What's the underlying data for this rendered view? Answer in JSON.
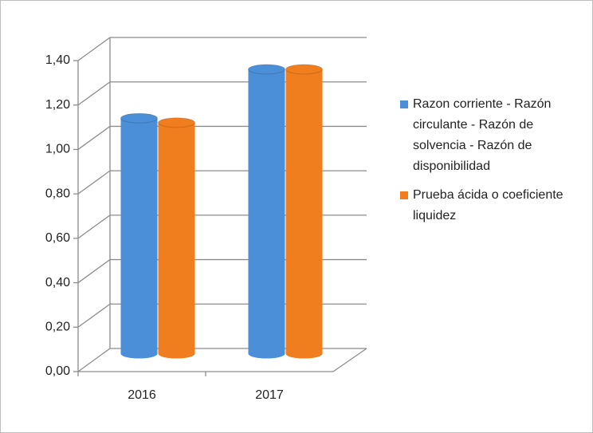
{
  "chart_data": {
    "type": "bar3d",
    "categories": [
      "2016",
      "2017"
    ],
    "series": [
      {
        "name": "Razon corriente - Razón circulante - Razón de solvencia - Razón de disponibilidad",
        "color": "#4a8fd8",
        "values": [
          1.06,
          1.28
        ]
      },
      {
        "name": "Prueba ácida o coeficiente liquidez",
        "color": "#f07d1e",
        "values": [
          1.04,
          1.28
        ]
      }
    ],
    "ylim": [
      0,
      1.4
    ],
    "yticks": [
      {
        "value": 0,
        "label": "0,00"
      },
      {
        "value": 0.2,
        "label": "0,20"
      },
      {
        "value": 0.4,
        "label": "0,40"
      },
      {
        "value": 0.6,
        "label": "0,60"
      },
      {
        "value": 0.8,
        "label": "0,80"
      },
      {
        "value": 1.0,
        "label": "1,00"
      },
      {
        "value": 1.2,
        "label": "1,20"
      },
      {
        "value": 1.4,
        "label": "1,40"
      }
    ],
    "grid": true,
    "legend": "right"
  }
}
